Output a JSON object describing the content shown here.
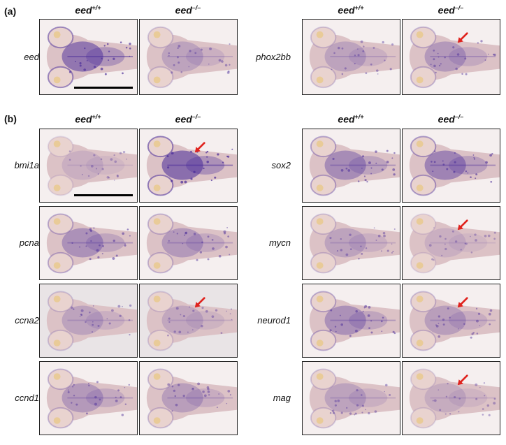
{
  "panels": [
    {
      "label": "(a)",
      "column_headers": {
        "wt_base": "eed",
        "wt_sup": "+/+",
        "mut_base": "eed",
        "mut_sup": "–/–"
      },
      "rows_left": [
        {
          "gene": "eed",
          "wt_intensity": 0.85,
          "mut_intensity": 0.35,
          "arrow": false,
          "scale_bar": true
        }
      ],
      "rows_right": [
        {
          "gene": "phox2bb",
          "wt_intensity": 0.35,
          "mut_intensity": 0.45,
          "arrow": true,
          "scale_bar": false
        }
      ]
    },
    {
      "label": "(b)",
      "column_headers": {
        "wt_base": "eed",
        "wt_sup": "+/+",
        "mut_base": "eed",
        "mut_sup": "–/–"
      },
      "rows_left": [
        {
          "gene": "bmi1a",
          "wt_intensity": 0.2,
          "mut_intensity": 0.95,
          "arrow": true,
          "scale_bar": true
        },
        {
          "gene": "pcna",
          "wt_intensity": 0.55,
          "mut_intensity": 0.45,
          "arrow": false,
          "scale_bar": false
        },
        {
          "gene": "ccna2",
          "wt_intensity": 0.35,
          "mut_intensity": 0.3,
          "arrow": true,
          "scale_bar": false
        },
        {
          "gene": "ccnd1",
          "wt_intensity": 0.45,
          "mut_intensity": 0.4,
          "arrow": false,
          "scale_bar": false
        }
      ],
      "rows_right": [
        {
          "gene": "sox2",
          "wt_intensity": 0.6,
          "mut_intensity": 0.7,
          "arrow": false,
          "scale_bar": false
        },
        {
          "gene": "mycn",
          "wt_intensity": 0.35,
          "mut_intensity": 0.2,
          "arrow": true,
          "scale_bar": false
        },
        {
          "gene": "neurod1",
          "wt_intensity": 0.55,
          "mut_intensity": 0.4,
          "arrow": true,
          "scale_bar": false
        },
        {
          "gene": "mag",
          "wt_intensity": 0.35,
          "mut_intensity": 0.25,
          "arrow": true,
          "scale_bar": false
        }
      ]
    }
  ],
  "colors": {
    "stain": "#4b2d9a",
    "tissue": "#dcc2c6",
    "arrow": "#e0231e",
    "background_tile": "#f5efef"
  }
}
